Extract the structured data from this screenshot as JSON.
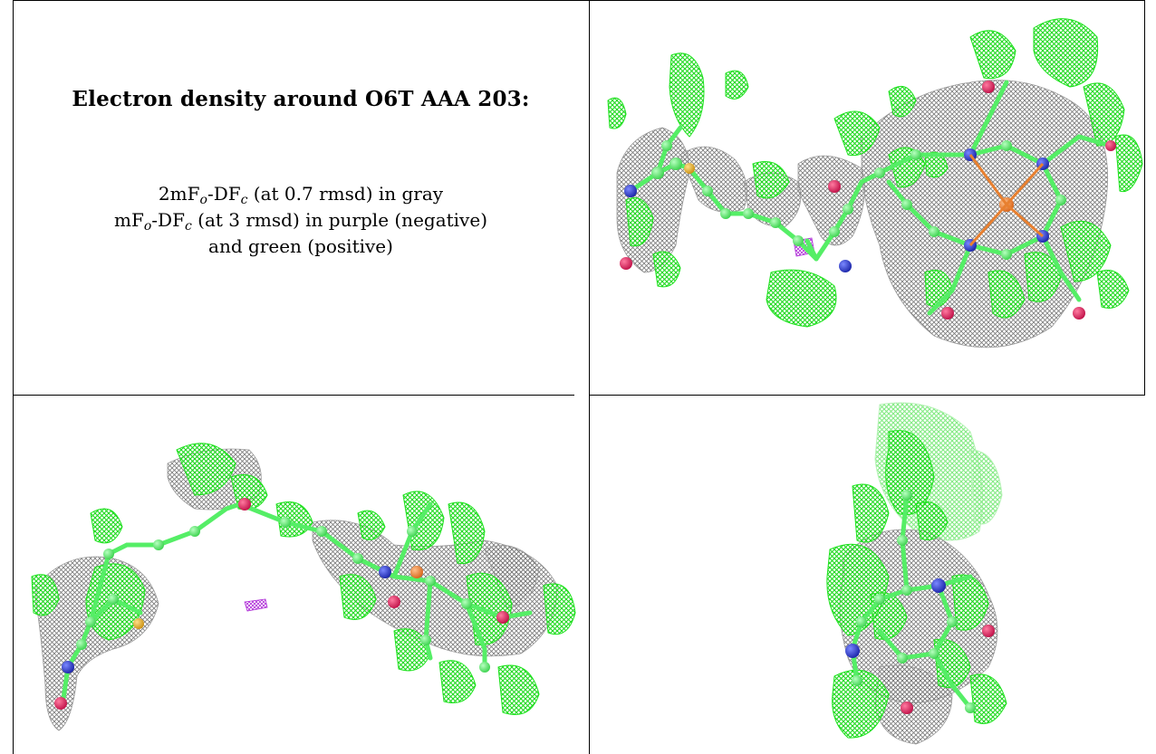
{
  "caption": {
    "title": "Electron density around O6T AAA 203:",
    "line1": {
      "a": "2mF",
      "b": "o",
      "c": "-DF",
      "d": "c",
      "e": " (at 0.7 rmsd) in gray"
    },
    "line2": {
      "a": "mF",
      "b": "o",
      "c": "-DF",
      "d": "c",
      "e": " (at 3 rmsd) in purple (negative)"
    },
    "line3": "and green (positive)"
  },
  "colors": {
    "grid_border": "#000000",
    "density_gray": "#8a8a8a",
    "density_positive": "#22e522",
    "density_negative": "#c040e0",
    "carbon": "#55ee66",
    "oxygen": "#e0205a",
    "nitrogen": "#2a3ad8",
    "sulfur": "#e8b830",
    "iron": "#e88030"
  },
  "panels": [
    {
      "view": "top-right"
    },
    {
      "view": "bottom-left"
    },
    {
      "view": "bottom-right"
    }
  ]
}
